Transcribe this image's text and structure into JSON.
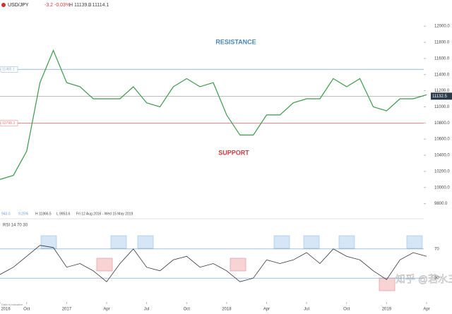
{
  "watermark": "知乎 @若水三千",
  "chart_data": [
    {
      "type": "line",
      "symbol": "USD/JPY",
      "change": "-3.2",
      "change_pct": "-0.03%",
      "high": "H 11139.3",
      "low": "L 11114.1",
      "info": [
        "943.0",
        "9.25%",
        "H 11866.5",
        "L 9953.6",
        "Fri 12 Aug 2016 - Wed 15 May 2019"
      ],
      "source_note": "Data is indicative",
      "annotations": [
        {
          "text": "RESISTANCE",
          "color": "#4a86b8"
        },
        {
          "text": "SUPPORT",
          "color": "#d0393e"
        }
      ],
      "levels": [
        {
          "value": 11465.1,
          "color": "#8fb2d8"
        },
        {
          "value": 10798.3,
          "color": "#e07a7d"
        }
      ],
      "last": 11132.5,
      "color": "#3a9a4a",
      "x": [
        "2016-08",
        "2016-09",
        "2016-10",
        "2016-11",
        "2016-12",
        "2017-01",
        "2017-02",
        "2017-03",
        "2017-04",
        "2017-05",
        "2017-06",
        "2017-07",
        "2017-08",
        "2017-09",
        "2017-10",
        "2017-11",
        "2017-12",
        "2018-01",
        "2018-02",
        "2018-03",
        "2018-04",
        "2018-05",
        "2018-06",
        "2018-07",
        "2018-08",
        "2018-09",
        "2018-10",
        "2018-11",
        "2018-12",
        "2019-01",
        "2019-02",
        "2019-03",
        "2019-04"
      ],
      "values": [
        10100,
        10150,
        10450,
        11300,
        11700,
        11300,
        11250,
        11100,
        11100,
        11100,
        11250,
        11050,
        11000,
        11250,
        11350,
        11250,
        11300,
        10900,
        10650,
        10650,
        10900,
        10900,
        11050,
        11100,
        11100,
        11350,
        11250,
        11350,
        11000,
        10950,
        11100,
        11100,
        11150
      ],
      "xlim": [
        "2016-08",
        "2019-04"
      ],
      "ylim": [
        9700,
        12150
      ],
      "yticks": [
        {
          "value": 9800,
          "label": "9800.0"
        },
        {
          "value": 10000,
          "label": "10000.0"
        },
        {
          "value": 10200,
          "label": "10200.0"
        },
        {
          "value": 10400,
          "label": "10400.0"
        },
        {
          "value": 10600,
          "label": "10600.0"
        },
        {
          "value": 10800,
          "label": "10800.0"
        },
        {
          "value": 11000,
          "label": "11000.0"
        },
        {
          "value": 11200,
          "label": "11200.0"
        },
        {
          "value": 11400,
          "label": "11400.0"
        },
        {
          "value": 11600,
          "label": "11600.0"
        },
        {
          "value": 11800,
          "label": "11800.0"
        },
        {
          "value": 12000,
          "label": "12000.0"
        }
      ]
    },
    {
      "type": "line",
      "title": "RSI 14 70 30",
      "color": "#333333",
      "x": [
        "2016-08",
        "2016-09",
        "2016-10",
        "2016-11",
        "2016-12",
        "2017-01",
        "2017-02",
        "2017-03",
        "2017-04",
        "2017-05",
        "2017-06",
        "2017-07",
        "2017-08",
        "2017-09",
        "2017-10",
        "2017-11",
        "2017-12",
        "2018-01",
        "2018-02",
        "2018-03",
        "2018-04",
        "2018-05",
        "2018-06",
        "2018-07",
        "2018-08",
        "2018-09",
        "2018-10",
        "2018-11",
        "2018-12",
        "2019-01",
        "2019-02",
        "2019-03",
        "2019-04"
      ],
      "values": [
        35,
        45,
        60,
        75,
        72,
        45,
        50,
        40,
        25,
        50,
        70,
        45,
        40,
        55,
        60,
        45,
        50,
        40,
        25,
        30,
        55,
        50,
        55,
        65,
        50,
        70,
        60,
        55,
        40,
        28,
        55,
        65,
        60
      ],
      "xlim": [
        "2016-08",
        "2019-04"
      ],
      "ylim": [
        5,
        95
      ],
      "yticks": [
        30,
        70
      ],
      "xticks": [
        {
          "value": "2016-08",
          "label": "2016"
        },
        {
          "value": "2016-10",
          "label": "Oct"
        },
        {
          "value": "2017-01",
          "label": "2017"
        },
        {
          "value": "2017-04",
          "label": "Apr"
        },
        {
          "value": "2017-07",
          "label": "Jul"
        },
        {
          "value": "2017-10",
          "label": "Oct"
        },
        {
          "value": "2018-01",
          "label": "2018"
        },
        {
          "value": "2018-04",
          "label": "Apr"
        },
        {
          "value": "2018-07",
          "label": "Jul"
        },
        {
          "value": "2018-10",
          "label": "Oct"
        },
        {
          "value": "2019-01",
          "label": "2019"
        },
        {
          "value": "2019-04",
          "label": "Apr"
        }
      ]
    }
  ]
}
